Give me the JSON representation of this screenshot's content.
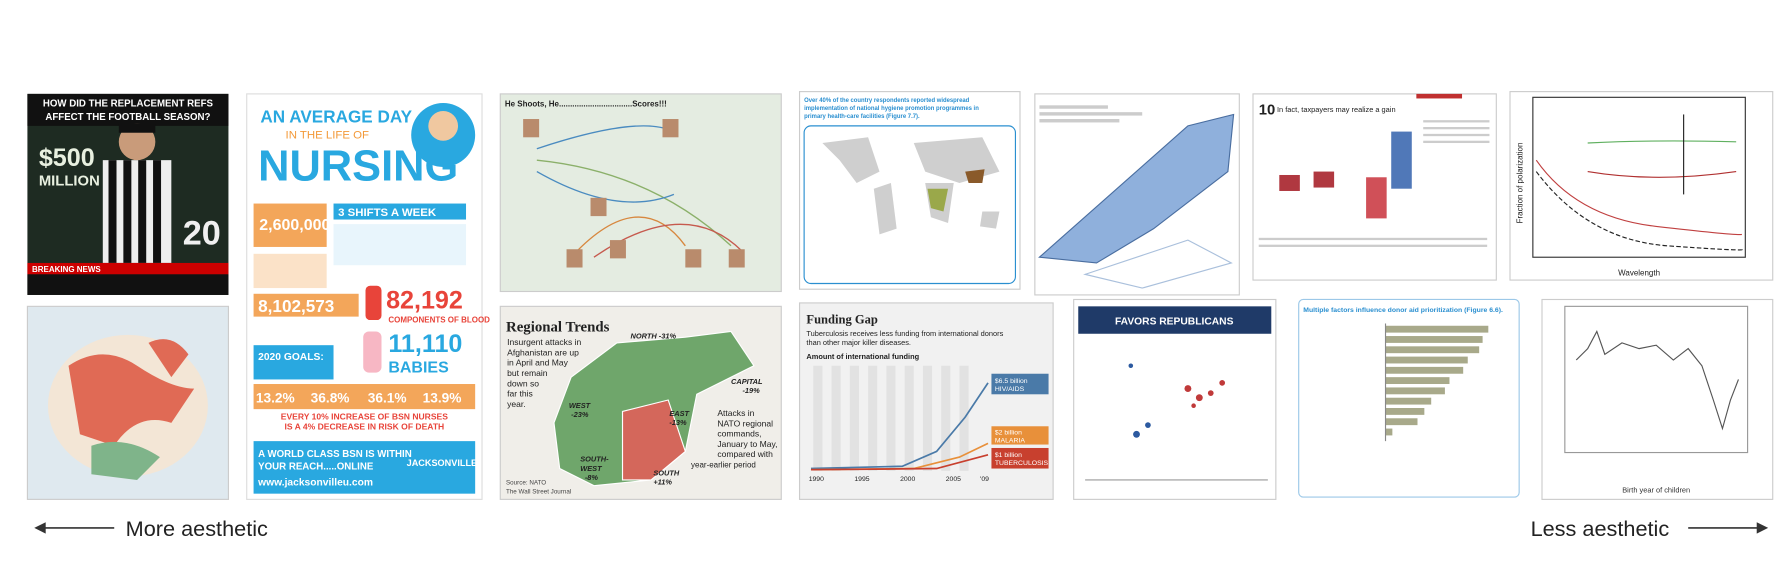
{
  "panels": [
    {
      "texts": [
        "HOW DID THE REPLACEMENT REFS",
        "AFFECT THE FOOTBALL SEASON?",
        "$500",
        "MILLION",
        "20",
        "BREAKING NEWS"
      ]
    },
    {
      "texts": [
        "AN AVERAGE DAY",
        "IN THE LIFE OF",
        "NURSING",
        "2,600,000",
        "3 SHIFTS A WEEK",
        "8,102,573",
        "82,192",
        "COMPONENTS OF BLOOD",
        "11,110",
        "BABIES",
        "2020 GOALS:",
        "13.2%",
        "36.8%",
        "36.1%",
        "13.9%",
        "EVERY 10% INCREASE OF BSN NURSES",
        "IS A 4% DECREASE IN RISK OF DEATH",
        "A WORLD CLASS BSN IS WITHIN",
        "YOUR REACH.....ONLINE",
        "www.jacksonvilleu.com",
        "JACKSONVILLE"
      ]
    },
    {
      "texts": [
        "He Shoots, He.................................Scores!!!"
      ]
    },
    {
      "texts": [
        "Regional Trends",
        "Insurgent attacks in",
        "Afghanistan are up",
        "in April and May",
        "but remain",
        "down so",
        "far this",
        "year.",
        "NORTH -31%",
        "WEST",
        "-23%",
        "EAST",
        "-13%",
        "CAPITAL",
        "-19%",
        "SOUTH-",
        "WEST",
        "-8%",
        "SOUTH",
        "+11%",
        "Attacks in",
        "NATO regional",
        "commands,",
        "January to May,",
        "compared with",
        "year-earlier period",
        "Source: NATO",
        "The Wall Street Journal"
      ]
    },
    {
      "texts": [
        "Over 40% of the country respondents reported widespread",
        "implementation of national hygiene promotion programmes in",
        "primary health-care facilities (Figure 7.7)."
      ]
    },
    {
      "texts": [
        "Funding Gap",
        "Tuberculosis receives less funding from international donors",
        "than other major killer diseases.",
        "Amount of international funding",
        "$6.5 billion",
        "HIV/AIDS",
        "$2 billion",
        "MALARIA",
        "$1 billion",
        "TUBERCULOSIS",
        "1990",
        "1995",
        "2000",
        "2005",
        "'09"
      ]
    },
    {
      "texts": [
        "FAVORS REPUBLICANS"
      ]
    },
    {
      "texts": [
        "10",
        "In fact, taxpayers may realize a gain"
      ]
    },
    {
      "texts": [
        "Multiple factors influence donor aid prioritization (Figure 6.6)."
      ]
    },
    {
      "texts": [
        "Fraction of polarization",
        "Wavelength"
      ]
    },
    {
      "texts": [
        "Birth year of children"
      ]
    }
  ],
  "labels": {
    "left": "More aesthetic",
    "right": "Less aesthetic"
  }
}
